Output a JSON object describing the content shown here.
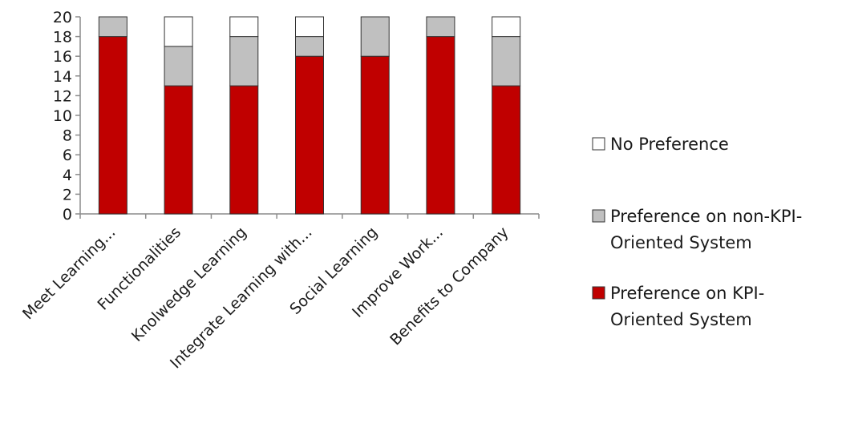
{
  "chart_data": {
    "type": "bar",
    "stacked": true,
    "categories": [
      "Meet Learning...",
      "Functionalities",
      "Knolwedge Learning",
      "Integrate Learning with...",
      "Social Learning",
      "Improve Work...",
      "Benefits to Company"
    ],
    "series": [
      {
        "name": "Preference on KPI-Oriented System",
        "name_lines": [
          "Preference on KPI-",
          "Oriented System"
        ],
        "color": "#c00000",
        "values": [
          18,
          13,
          13,
          16,
          16,
          18,
          13
        ]
      },
      {
        "name": "Preference on non-KPI-Oriented System",
        "name_lines": [
          "Preference on non-KPI-",
          "Oriented System"
        ],
        "color": "#c0c0c0",
        "values": [
          2,
          4,
          5,
          2,
          4,
          2,
          5
        ]
      },
      {
        "name": "No Preference",
        "name_lines": [
          "No Preference"
        ],
        "color": "#ffffff",
        "values": [
          0,
          3,
          2,
          2,
          0,
          0,
          2
        ]
      }
    ],
    "y_ticks": [
      "0",
      "2",
      "4",
      "6",
      "8",
      "10",
      "12",
      "14",
      "16",
      "18",
      "20"
    ],
    "ylim": [
      0,
      20
    ],
    "title": "",
    "xlabel": "",
    "ylabel": "",
    "grid": false,
    "legend_position": "right"
  }
}
